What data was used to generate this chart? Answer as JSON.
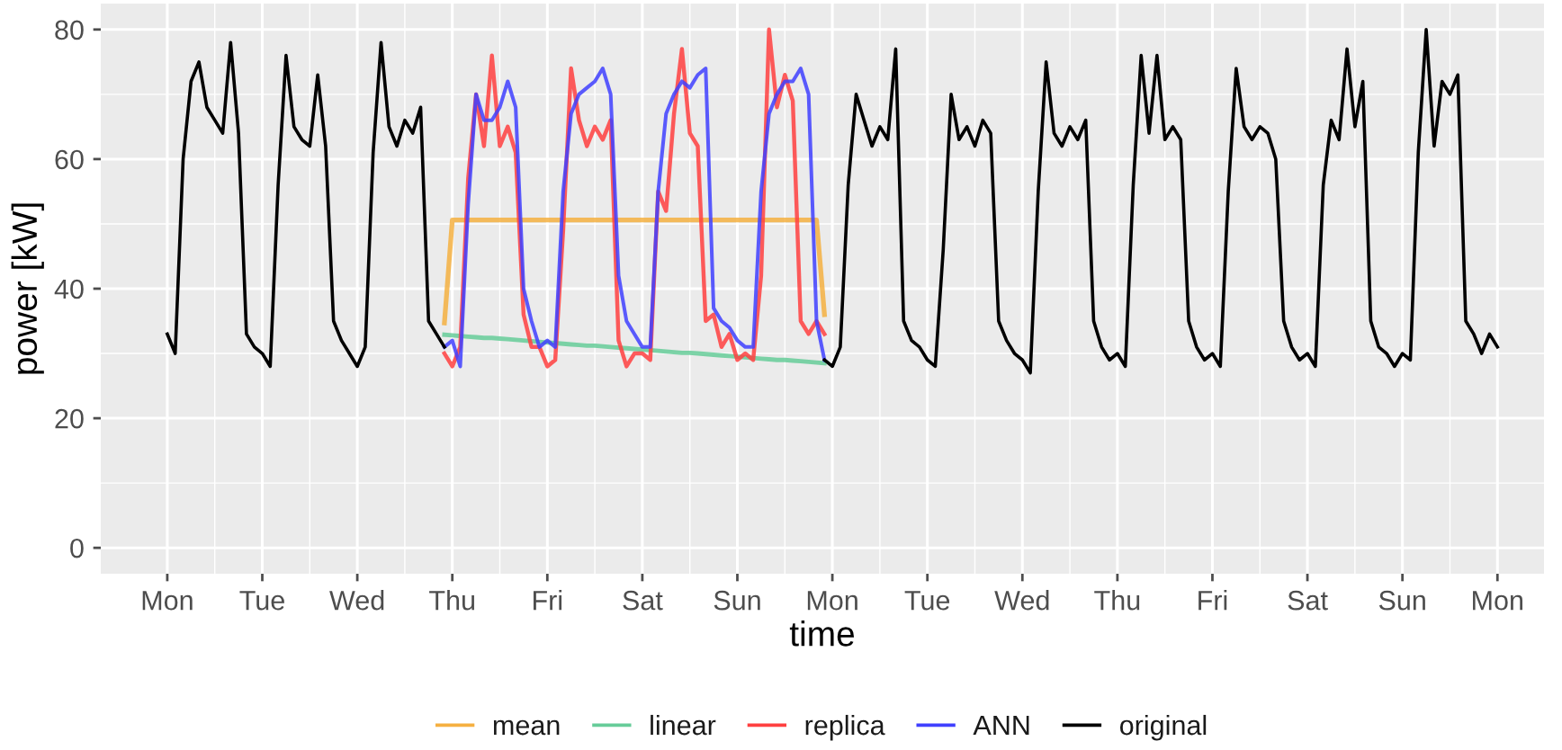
{
  "chart_data": {
    "type": "line",
    "xlabel": "time",
    "ylabel": "power [kW]",
    "ylim": [
      -4,
      84
    ],
    "yticks": [
      0,
      20,
      40,
      60,
      80
    ],
    "grid": true,
    "legend": "bottom",
    "line_style": "solid",
    "marker": "none",
    "categories": [
      "Mon",
      null,
      null,
      null,
      null,
      null,
      null,
      null,
      null,
      null,
      null,
      null,
      "Tue",
      null,
      null,
      null,
      null,
      null,
      null,
      null,
      null,
      null,
      null,
      null,
      "Wed",
      null,
      null,
      null,
      null,
      null,
      null,
      null,
      null,
      null,
      null,
      null,
      "Thu",
      null,
      null,
      null,
      null,
      null,
      null,
      null,
      null,
      null,
      null,
      null,
      "Fri",
      null,
      null,
      null,
      null,
      null,
      null,
      null,
      null,
      null,
      null,
      null,
      "Sat",
      null,
      null,
      null,
      null,
      null,
      null,
      null,
      null,
      null,
      null,
      null,
      "Sun",
      null,
      null,
      null,
      null,
      null,
      null,
      null,
      null,
      null,
      null,
      null,
      "Mon",
      null,
      null,
      null,
      null,
      null,
      null,
      null,
      null,
      null,
      null,
      null,
      "Tue",
      null,
      null,
      null,
      null,
      null,
      null,
      null,
      null,
      null,
      null,
      null,
      "Wed",
      null,
      null,
      null,
      null,
      null,
      null,
      null,
      null,
      null,
      null,
      null,
      "Thu",
      null,
      null,
      null,
      null,
      null,
      null,
      null,
      null,
      null,
      null,
      null,
      "Fri",
      null,
      null,
      null,
      null,
      null,
      null,
      null,
      null,
      null,
      null,
      null,
      "Sat",
      null,
      null,
      null,
      null,
      null,
      null,
      null,
      null,
      null,
      null,
      null,
      "Sun",
      null,
      null,
      null,
      null,
      null,
      null,
      null,
      null,
      null,
      null,
      null,
      "Mon"
    ],
    "series": [
      {
        "name": "mean",
        "color": "#f5b041",
        "values": [
          null,
          null,
          null,
          null,
          null,
          null,
          null,
          null,
          null,
          null,
          null,
          null,
          null,
          null,
          null,
          null,
          null,
          null,
          null,
          null,
          null,
          null,
          null,
          null,
          null,
          null,
          null,
          null,
          null,
          null,
          null,
          null,
          null,
          null,
          null,
          34.7,
          50.6,
          50.6,
          50.6,
          50.6,
          50.6,
          50.6,
          50.6,
          50.6,
          50.6,
          50.6,
          50.6,
          50.6,
          50.6,
          50.6,
          50.6,
          50.6,
          50.6,
          50.6,
          50.6,
          50.6,
          50.6,
          50.6,
          50.6,
          50.6,
          50.6,
          50.6,
          50.6,
          50.6,
          50.6,
          50.6,
          50.6,
          50.6,
          50.6,
          50.6,
          50.6,
          50.6,
          50.6,
          50.6,
          50.6,
          50.6,
          50.6,
          50.6,
          50.6,
          50.6,
          50.6,
          50.6,
          50.6,
          36,
          null,
          null,
          null,
          null,
          null,
          null,
          null,
          null,
          null,
          null,
          null,
          null,
          null,
          null,
          null,
          null,
          null,
          null,
          null,
          null,
          null,
          null,
          null,
          null,
          null,
          null,
          null,
          null,
          null,
          null,
          null,
          null,
          null,
          null,
          null,
          null,
          null,
          null,
          null,
          null,
          null,
          null,
          null,
          null,
          null,
          null,
          null,
          null,
          null,
          null,
          null,
          null,
          null,
          null,
          null,
          null,
          null,
          null,
          null,
          null,
          null,
          null,
          null,
          null,
          null,
          null,
          null,
          null,
          null,
          null,
          null,
          null,
          null,
          null,
          null,
          null,
          null,
          null,
          null,
          null,
          null,
          null,
          null,
          null,
          null
        ]
      },
      {
        "name": "linear",
        "color": "#66cc99",
        "values": [
          null,
          null,
          null,
          null,
          null,
          null,
          null,
          null,
          null,
          null,
          null,
          null,
          null,
          null,
          null,
          null,
          null,
          null,
          null,
          null,
          null,
          null,
          null,
          null,
          null,
          null,
          null,
          null,
          null,
          null,
          null,
          null,
          null,
          null,
          null,
          32.9,
          32.8,
          32.7,
          32.6,
          32.5,
          32.4,
          32.4,
          32.3,
          32.2,
          32.1,
          32.0,
          31.9,
          31.8,
          31.7,
          31.6,
          31.5,
          31.4,
          31.3,
          31.2,
          31.2,
          31.1,
          31.0,
          30.9,
          30.8,
          30.7,
          30.6,
          30.5,
          30.4,
          30.3,
          30.2,
          30.1,
          30.1,
          30.0,
          29.9,
          29.8,
          29.7,
          29.6,
          29.5,
          29.4,
          29.3,
          29.2,
          29.1,
          29.0,
          29.0,
          28.9,
          28.8,
          28.7,
          28.6,
          28.5,
          null,
          null,
          null,
          null,
          null,
          null,
          null,
          null,
          null,
          null,
          null,
          null,
          null,
          null,
          null,
          null,
          null,
          null,
          null,
          null,
          null,
          null,
          null,
          null,
          null,
          null,
          null,
          null,
          null,
          null,
          null,
          null,
          null,
          null,
          null,
          null,
          null,
          null,
          null,
          null,
          null,
          null,
          null,
          null,
          null,
          null,
          null,
          null,
          null,
          null,
          null,
          null,
          null,
          null,
          null,
          null,
          null,
          null,
          null,
          null,
          null,
          null,
          null,
          null,
          null,
          null,
          null,
          null,
          null,
          null,
          null,
          null,
          null,
          null,
          null,
          null,
          null,
          null,
          null,
          null,
          null,
          null,
          null,
          null,
          null
        ]
      },
      {
        "name": "replica",
        "color": "#ff4040",
        "values": [
          null,
          null,
          null,
          null,
          null,
          null,
          null,
          null,
          null,
          null,
          null,
          null,
          null,
          null,
          null,
          null,
          null,
          null,
          null,
          null,
          null,
          null,
          null,
          null,
          null,
          null,
          null,
          null,
          null,
          null,
          null,
          null,
          null,
          null,
          null,
          30,
          28,
          31,
          57,
          70,
          62,
          76,
          62,
          65,
          61,
          36,
          31,
          31,
          28,
          29,
          49,
          74,
          66,
          62,
          65,
          63,
          66,
          32,
          28,
          30,
          30,
          29,
          55,
          52,
          67,
          77,
          64,
          62,
          35,
          36,
          31,
          33,
          29,
          30,
          29,
          42,
          80,
          68,
          73,
          69,
          35,
          33,
          35,
          33,
          null,
          null,
          null,
          null,
          null,
          null,
          null,
          null,
          null,
          null,
          null,
          null,
          null,
          null,
          null,
          null,
          null,
          null,
          null,
          null,
          null,
          null,
          null,
          null,
          null,
          null,
          null,
          null,
          null,
          null,
          null,
          null,
          null,
          null,
          null,
          null,
          null,
          null,
          null,
          null,
          null,
          null,
          null,
          null,
          null,
          null,
          null,
          null,
          null,
          null,
          null,
          null,
          null,
          null,
          null,
          null,
          null,
          null,
          null,
          null,
          null,
          null,
          null,
          null,
          null,
          null,
          null,
          null,
          null,
          null,
          null,
          null,
          null,
          null,
          null,
          null,
          null,
          null,
          null,
          null,
          null,
          null,
          null,
          null,
          null
        ]
      },
      {
        "name": "ANN",
        "color": "#4040ff",
        "values": [
          null,
          null,
          null,
          null,
          null,
          null,
          null,
          null,
          null,
          null,
          null,
          null,
          null,
          null,
          null,
          null,
          null,
          null,
          null,
          null,
          null,
          null,
          null,
          null,
          null,
          null,
          null,
          null,
          null,
          null,
          null,
          null,
          null,
          null,
          null,
          31,
          32,
          28,
          53,
          70,
          66,
          66,
          68,
          72,
          68,
          40,
          35,
          31,
          32,
          31,
          55,
          67,
          70,
          71,
          72,
          74,
          70,
          42,
          35,
          33,
          31,
          31,
          55,
          67,
          70,
          72,
          71,
          73,
          74,
          37,
          35,
          34,
          32,
          31,
          31,
          55,
          67,
          70,
          72,
          72,
          74,
          70,
          35,
          29,
          null,
          null,
          null,
          null,
          null,
          null,
          null,
          null,
          null,
          null,
          null,
          null,
          null,
          null,
          null,
          null,
          null,
          null,
          null,
          null,
          null,
          null,
          null,
          null,
          null,
          null,
          null,
          null,
          null,
          null,
          null,
          null,
          null,
          null,
          null,
          null,
          null,
          null,
          null,
          null,
          null,
          null,
          null,
          null,
          null,
          null,
          null,
          null,
          null,
          null,
          null,
          null,
          null,
          null,
          null,
          null,
          null,
          null,
          null,
          null,
          null,
          null,
          null,
          null,
          null,
          null,
          null,
          null,
          null,
          null,
          null,
          null,
          null,
          null,
          null,
          null,
          null,
          null,
          null,
          null,
          null,
          null,
          null,
          null,
          null
        ]
      },
      {
        "name": "original",
        "color": "#000000",
        "values": [
          33,
          30,
          60,
          72,
          75,
          68,
          66,
          64,
          78,
          64,
          33,
          31,
          30,
          28,
          56,
          76,
          65,
          63,
          62,
          73,
          62,
          35,
          32,
          30,
          28,
          31,
          61,
          78,
          65,
          62,
          66,
          64,
          68,
          35,
          33,
          31,
          null,
          null,
          null,
          null,
          null,
          null,
          null,
          null,
          null,
          null,
          null,
          null,
          null,
          null,
          null,
          null,
          null,
          null,
          null,
          null,
          null,
          null,
          null,
          null,
          null,
          null,
          null,
          null,
          null,
          null,
          null,
          null,
          null,
          null,
          null,
          null,
          null,
          null,
          null,
          null,
          null,
          null,
          null,
          null,
          null,
          null,
          null,
          29,
          28,
          31,
          56,
          70,
          66,
          62,
          65,
          63,
          77,
          35,
          32,
          31,
          29,
          28,
          46,
          70,
          63,
          65,
          62,
          66,
          64,
          35,
          32,
          30,
          29,
          27,
          55,
          75,
          64,
          62,
          65,
          63,
          66,
          35,
          31,
          29,
          30,
          28,
          56,
          76,
          64,
          76,
          63,
          65,
          63,
          35,
          31,
          29,
          30,
          28,
          55,
          74,
          65,
          63,
          65,
          64,
          60,
          35,
          31,
          29,
          30,
          28,
          56,
          66,
          63,
          77,
          65,
          72,
          35,
          31,
          30,
          28,
          30,
          29,
          61,
          80,
          62,
          72,
          70,
          73,
          35,
          33,
          30,
          33,
          31
        ]
      }
    ]
  }
}
